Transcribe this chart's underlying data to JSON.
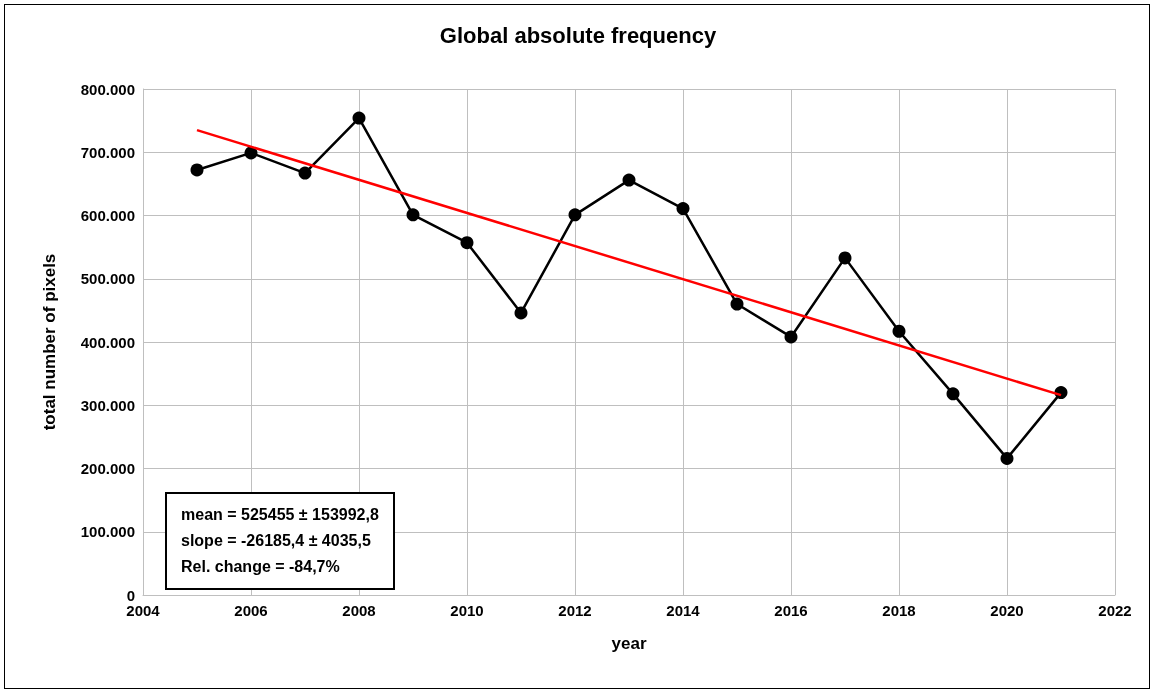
{
  "chart_data": {
    "type": "line",
    "title": "Global absolute frequency",
    "xlabel": "year",
    "ylabel": "total number of pixels",
    "series": [
      {
        "color": "#000000",
        "marker": "circle",
        "x": [
          2005,
          2006,
          2007,
          2008,
          2009,
          2010,
          2011,
          2012,
          2013,
          2014,
          2015,
          2016,
          2017,
          2018,
          2019,
          2020,
          2021
        ],
        "values": [
          672000,
          699000,
          667000,
          754000,
          601000,
          557000,
          446000,
          601000,
          656000,
          611000,
          460000,
          408000,
          533000,
          417000,
          318000,
          216000,
          320000
        ]
      },
      {
        "color": "#ff0000",
        "marker": "none",
        "x": [
          2005,
          2021
        ],
        "values": [
          735000,
          316000
        ]
      }
    ],
    "xlim": [
      2004,
      2022
    ],
    "xticks": [
      2004,
      2006,
      2008,
      2010,
      2012,
      2014,
      2016,
      2018,
      2020,
      2022
    ],
    "ylim": [
      0,
      800000
    ],
    "yticks": [
      {
        "value": 0,
        "label": "0"
      },
      {
        "value": 100000,
        "label": "100.000"
      },
      {
        "value": 200000,
        "label": "200.000"
      },
      {
        "value": 300000,
        "label": "300.000"
      },
      {
        "value": 400000,
        "label": "400.000"
      },
      {
        "value": 500000,
        "label": "500.000"
      },
      {
        "value": 600000,
        "label": "600.000"
      },
      {
        "value": 700000,
        "label": "700.000"
      },
      {
        "value": 800000,
        "label": "800.000"
      }
    ],
    "grid": true,
    "annotations": [
      "mean = 525455 ± 153992,8",
      "slope = -26185,4 ± 4035,5",
      "Rel. change = -84,7%"
    ]
  }
}
